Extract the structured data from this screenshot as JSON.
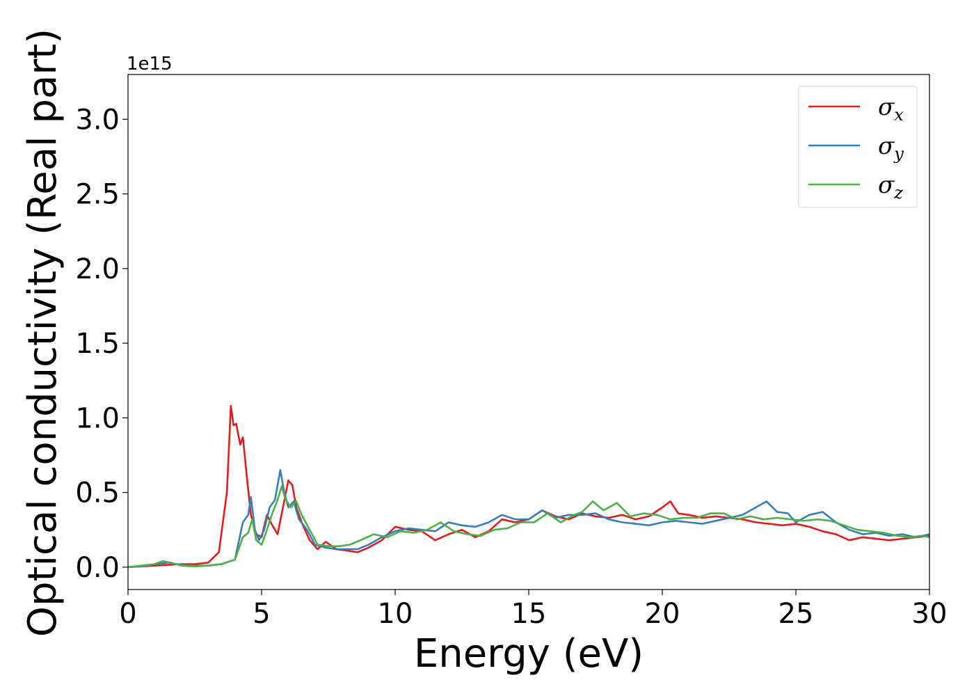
{
  "chart_data": {
    "type": "line",
    "title": "",
    "xlabel": "Energy (eV)",
    "ylabel": "Optical conductivity (Real part)",
    "y_offset_label": "1e15",
    "xlim": [
      0,
      30
    ],
    "ylim": [
      -0.15,
      3.3
    ],
    "x_ticks": [
      0,
      5,
      10,
      15,
      20,
      25,
      30
    ],
    "x_tick_labels": [
      "0",
      "5",
      "10",
      "15",
      "20",
      "25",
      "30"
    ],
    "y_ticks": [
      0.0,
      0.5,
      1.0,
      1.5,
      2.0,
      2.5,
      3.0
    ],
    "y_tick_labels": [
      "0.0",
      "0.5",
      "1.0",
      "1.5",
      "2.0",
      "2.5",
      "3.0"
    ],
    "grid": false,
    "legend_position": "top-right",
    "series": [
      {
        "name": "σx",
        "symbol": "σ",
        "subscript": "x",
        "color": "#e41a1c",
        "points": [
          [
            0,
            0
          ],
          [
            0.5,
            0.005
          ],
          [
            1.0,
            0.01
          ],
          [
            1.5,
            0.015
          ],
          [
            2.0,
            0.02
          ],
          [
            2.5,
            0.02
          ],
          [
            3.0,
            0.03
          ],
          [
            3.4,
            0.1
          ],
          [
            3.7,
            0.5
          ],
          [
            3.85,
            1.08
          ],
          [
            3.95,
            0.95
          ],
          [
            4.05,
            0.96
          ],
          [
            4.2,
            0.82
          ],
          [
            4.3,
            0.87
          ],
          [
            4.45,
            0.6
          ],
          [
            4.6,
            0.35
          ],
          [
            4.8,
            0.22
          ],
          [
            5.0,
            0.2
          ],
          [
            5.2,
            0.35
          ],
          [
            5.4,
            0.28
          ],
          [
            5.6,
            0.22
          ],
          [
            5.8,
            0.4
          ],
          [
            6.0,
            0.58
          ],
          [
            6.15,
            0.55
          ],
          [
            6.3,
            0.4
          ],
          [
            6.5,
            0.3
          ],
          [
            6.8,
            0.18
          ],
          [
            7.1,
            0.12
          ],
          [
            7.4,
            0.17
          ],
          [
            7.8,
            0.12
          ],
          [
            8.2,
            0.11
          ],
          [
            8.6,
            0.1
          ],
          [
            9.0,
            0.13
          ],
          [
            9.5,
            0.18
          ],
          [
            10.0,
            0.27
          ],
          [
            10.5,
            0.25
          ],
          [
            11.0,
            0.24
          ],
          [
            11.5,
            0.18
          ],
          [
            12.0,
            0.22
          ],
          [
            12.5,
            0.25
          ],
          [
            13.0,
            0.2
          ],
          [
            13.5,
            0.24
          ],
          [
            14.0,
            0.32
          ],
          [
            14.5,
            0.3
          ],
          [
            15.0,
            0.32
          ],
          [
            15.5,
            0.38
          ],
          [
            16.0,
            0.34
          ],
          [
            16.5,
            0.32
          ],
          [
            17.0,
            0.36
          ],
          [
            17.5,
            0.34
          ],
          [
            18.0,
            0.33
          ],
          [
            18.5,
            0.35
          ],
          [
            19.0,
            0.32
          ],
          [
            19.5,
            0.34
          ],
          [
            20.0,
            0.4
          ],
          [
            20.3,
            0.44
          ],
          [
            20.6,
            0.36
          ],
          [
            21.0,
            0.35
          ],
          [
            21.5,
            0.33
          ],
          [
            22.0,
            0.34
          ],
          [
            22.5,
            0.33
          ],
          [
            23.0,
            0.32
          ],
          [
            23.5,
            0.3
          ],
          [
            24.0,
            0.29
          ],
          [
            24.5,
            0.28
          ],
          [
            25.0,
            0.29
          ],
          [
            25.5,
            0.27
          ],
          [
            26.0,
            0.24
          ],
          [
            26.5,
            0.22
          ],
          [
            27.0,
            0.18
          ],
          [
            27.5,
            0.2
          ],
          [
            28.0,
            0.19
          ],
          [
            28.5,
            0.18
          ],
          [
            29.0,
            0.19
          ],
          [
            29.5,
            0.2
          ],
          [
            30.0,
            0.21
          ]
        ]
      },
      {
        "name": "σy",
        "symbol": "σ",
        "subscript": "y",
        "color": "#377eb8",
        "points": [
          [
            0,
            0
          ],
          [
            0.5,
            0.005
          ],
          [
            1.0,
            0.02
          ],
          [
            1.5,
            0.03
          ],
          [
            2.0,
            0.015
          ],
          [
            2.5,
            0.01
          ],
          [
            3.0,
            0.01
          ],
          [
            3.5,
            0.02
          ],
          [
            4.0,
            0.05
          ],
          [
            4.3,
            0.3
          ],
          [
            4.5,
            0.35
          ],
          [
            4.6,
            0.47
          ],
          [
            4.75,
            0.25
          ],
          [
            4.9,
            0.18
          ],
          [
            5.1,
            0.25
          ],
          [
            5.3,
            0.4
          ],
          [
            5.5,
            0.45
          ],
          [
            5.7,
            0.65
          ],
          [
            5.85,
            0.5
          ],
          [
            6.0,
            0.4
          ],
          [
            6.2,
            0.44
          ],
          [
            6.4,
            0.32
          ],
          [
            6.7,
            0.25
          ],
          [
            7.0,
            0.15
          ],
          [
            7.4,
            0.13
          ],
          [
            7.8,
            0.12
          ],
          [
            8.2,
            0.12
          ],
          [
            8.6,
            0.12
          ],
          [
            9.0,
            0.15
          ],
          [
            9.5,
            0.2
          ],
          [
            10.0,
            0.24
          ],
          [
            10.5,
            0.26
          ],
          [
            11.0,
            0.25
          ],
          [
            11.5,
            0.24
          ],
          [
            12.0,
            0.3
          ],
          [
            12.5,
            0.28
          ],
          [
            13.0,
            0.27
          ],
          [
            13.5,
            0.3
          ],
          [
            14.0,
            0.35
          ],
          [
            14.5,
            0.32
          ],
          [
            15.0,
            0.32
          ],
          [
            15.5,
            0.38
          ],
          [
            16.0,
            0.33
          ],
          [
            16.5,
            0.35
          ],
          [
            17.0,
            0.35
          ],
          [
            17.5,
            0.36
          ],
          [
            18.0,
            0.32
          ],
          [
            18.5,
            0.3
          ],
          [
            19.0,
            0.29
          ],
          [
            19.5,
            0.28
          ],
          [
            20.0,
            0.3
          ],
          [
            20.5,
            0.31
          ],
          [
            21.0,
            0.3
          ],
          [
            21.5,
            0.29
          ],
          [
            22.0,
            0.31
          ],
          [
            22.5,
            0.33
          ],
          [
            23.0,
            0.35
          ],
          [
            23.5,
            0.4
          ],
          [
            23.9,
            0.44
          ],
          [
            24.3,
            0.37
          ],
          [
            24.7,
            0.36
          ],
          [
            25.0,
            0.3
          ],
          [
            25.5,
            0.35
          ],
          [
            26.0,
            0.37
          ],
          [
            26.5,
            0.3
          ],
          [
            27.0,
            0.25
          ],
          [
            27.5,
            0.22
          ],
          [
            28.0,
            0.23
          ],
          [
            28.5,
            0.21
          ],
          [
            29.0,
            0.22
          ],
          [
            29.5,
            0.2
          ],
          [
            30.0,
            0.22
          ]
        ]
      },
      {
        "name": "σz",
        "symbol": "σ",
        "subscript": "z",
        "color": "#4daf4a",
        "points": [
          [
            0,
            0
          ],
          [
            0.5,
            0.01
          ],
          [
            1.0,
            0.02
          ],
          [
            1.3,
            0.04
          ],
          [
            1.6,
            0.03
          ],
          [
            2.0,
            0.01
          ],
          [
            2.5,
            0.005
          ],
          [
            3.0,
            0.01
          ],
          [
            3.5,
            0.02
          ],
          [
            4.0,
            0.05
          ],
          [
            4.3,
            0.2
          ],
          [
            4.5,
            0.23
          ],
          [
            4.65,
            0.32
          ],
          [
            4.8,
            0.18
          ],
          [
            5.0,
            0.15
          ],
          [
            5.2,
            0.25
          ],
          [
            5.4,
            0.36
          ],
          [
            5.6,
            0.45
          ],
          [
            5.75,
            0.54
          ],
          [
            5.9,
            0.45
          ],
          [
            6.1,
            0.4
          ],
          [
            6.3,
            0.44
          ],
          [
            6.5,
            0.35
          ],
          [
            6.8,
            0.25
          ],
          [
            7.1,
            0.15
          ],
          [
            7.5,
            0.14
          ],
          [
            7.9,
            0.14
          ],
          [
            8.3,
            0.15
          ],
          [
            8.7,
            0.18
          ],
          [
            9.2,
            0.22
          ],
          [
            9.7,
            0.2
          ],
          [
            10.2,
            0.24
          ],
          [
            10.7,
            0.23
          ],
          [
            11.2,
            0.25
          ],
          [
            11.7,
            0.3
          ],
          [
            12.2,
            0.24
          ],
          [
            12.7,
            0.22
          ],
          [
            13.2,
            0.21
          ],
          [
            13.7,
            0.25
          ],
          [
            14.2,
            0.26
          ],
          [
            14.7,
            0.3
          ],
          [
            15.2,
            0.3
          ],
          [
            15.7,
            0.36
          ],
          [
            16.2,
            0.3
          ],
          [
            16.7,
            0.35
          ],
          [
            17.0,
            0.37
          ],
          [
            17.4,
            0.44
          ],
          [
            17.8,
            0.38
          ],
          [
            18.3,
            0.43
          ],
          [
            18.8,
            0.34
          ],
          [
            19.3,
            0.36
          ],
          [
            19.8,
            0.35
          ],
          [
            20.3,
            0.32
          ],
          [
            20.8,
            0.33
          ],
          [
            21.3,
            0.33
          ],
          [
            21.8,
            0.36
          ],
          [
            22.3,
            0.36
          ],
          [
            22.8,
            0.32
          ],
          [
            23.3,
            0.34
          ],
          [
            23.8,
            0.32
          ],
          [
            24.3,
            0.33
          ],
          [
            24.8,
            0.32
          ],
          [
            25.3,
            0.31
          ],
          [
            25.8,
            0.32
          ],
          [
            26.3,
            0.31
          ],
          [
            26.8,
            0.28
          ],
          [
            27.3,
            0.25
          ],
          [
            27.8,
            0.24
          ],
          [
            28.3,
            0.23
          ],
          [
            28.8,
            0.21
          ],
          [
            29.3,
            0.2
          ],
          [
            29.7,
            0.21
          ],
          [
            30.0,
            0.2
          ]
        ]
      }
    ]
  }
}
